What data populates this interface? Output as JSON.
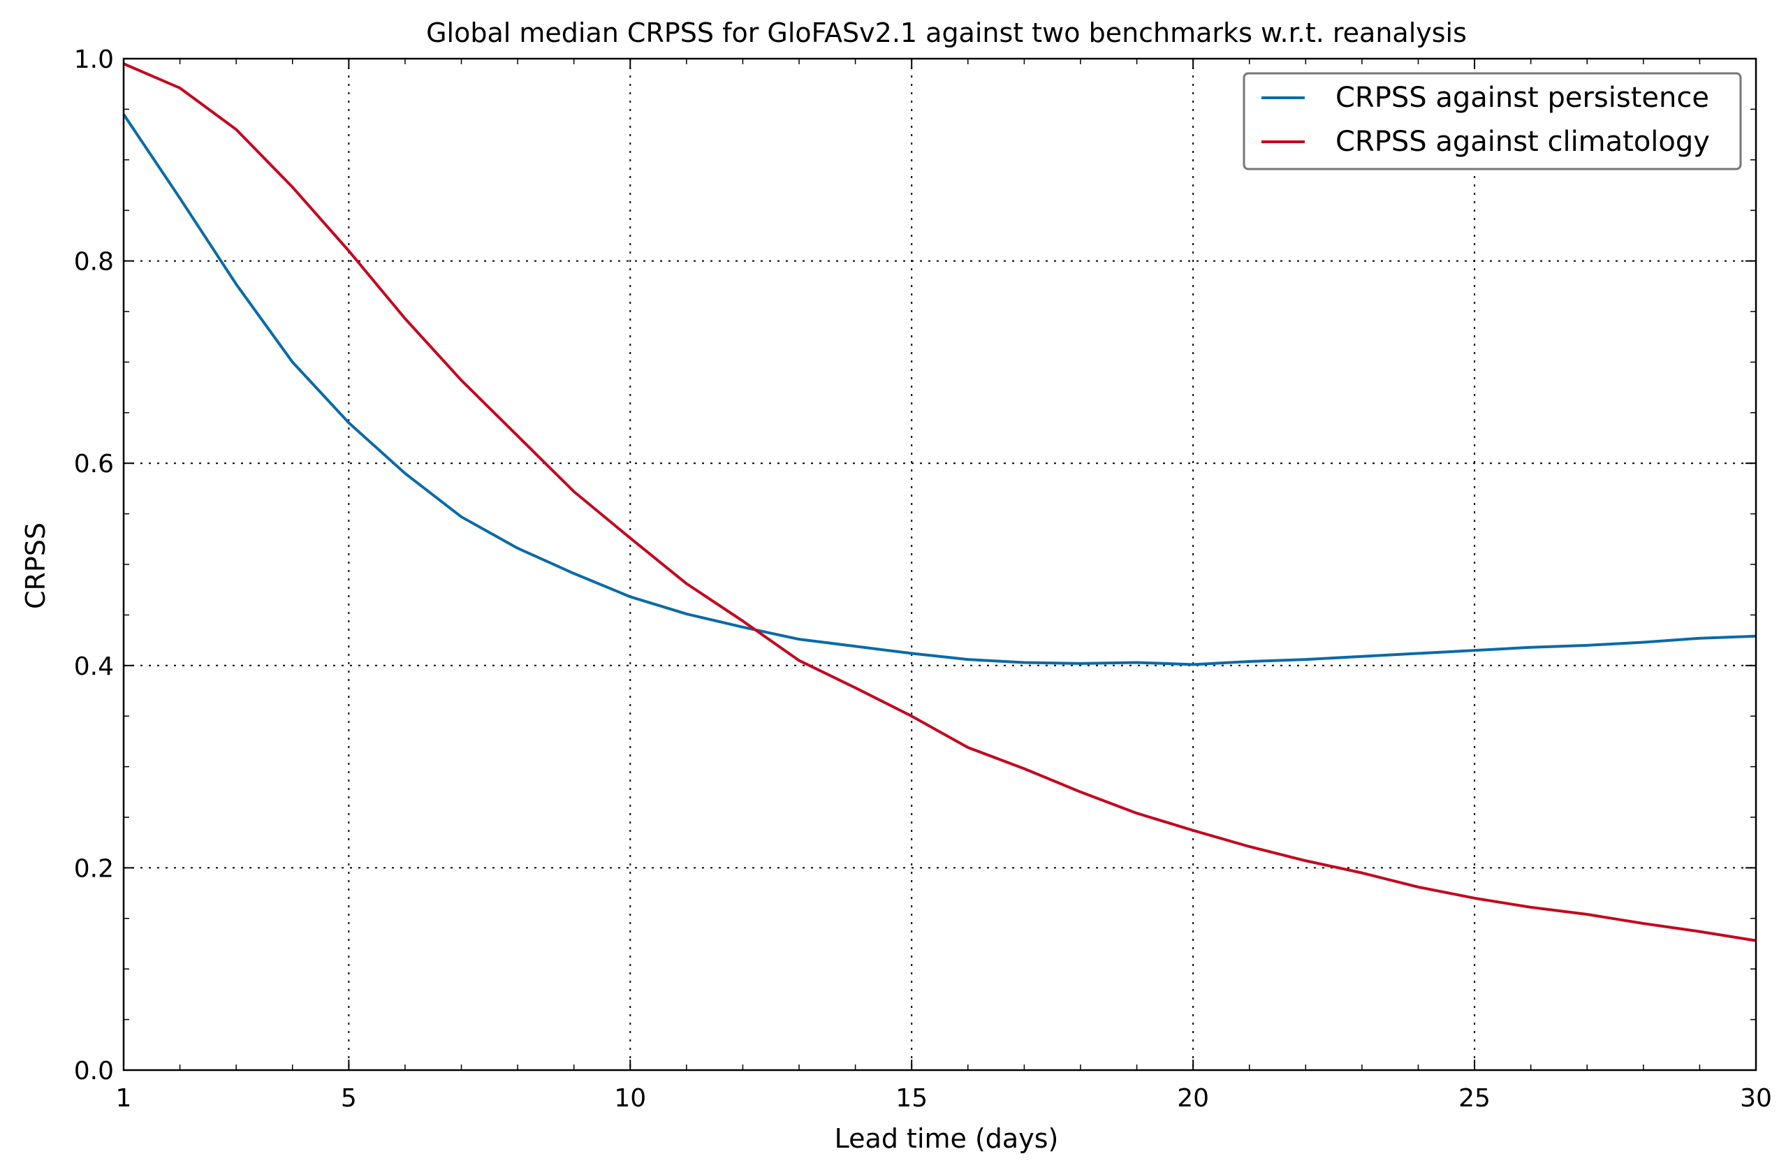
{
  "chart_data": {
    "type": "line",
    "title": "Global median CRPSS for GloFASv2.1 against two benchmarks w.r.t. reanalysis",
    "xlabel": "Lead time (days)",
    "ylabel": "CRPSS",
    "xlim": [
      1,
      30
    ],
    "ylim": [
      0.0,
      1.0
    ],
    "x_ticks": [
      1,
      5,
      10,
      15,
      20,
      25,
      30
    ],
    "x_tick_labels": [
      "1",
      "5",
      "10",
      "15",
      "20",
      "25",
      "30"
    ],
    "y_ticks": [
      0.0,
      0.2,
      0.4,
      0.6,
      0.8,
      1.0
    ],
    "y_tick_labels": [
      "0.0",
      "0.2",
      "0.4",
      "0.6",
      "0.8",
      "1.0"
    ],
    "grid": true,
    "legend_position": "top-right",
    "x": [
      1,
      2,
      3,
      4,
      5,
      6,
      7,
      8,
      9,
      10,
      11,
      12,
      13,
      14,
      15,
      16,
      17,
      18,
      19,
      20,
      21,
      22,
      23,
      24,
      25,
      26,
      27,
      28,
      29,
      30
    ],
    "series": [
      {
        "name": "CRPSS against persistence",
        "color": "#0a6aa8",
        "values": [
          0.945,
          0.862,
          0.777,
          0.7,
          0.64,
          0.59,
          0.547,
          0.516,
          0.491,
          0.468,
          0.451,
          0.438,
          0.426,
          0.419,
          0.412,
          0.406,
          0.403,
          0.402,
          0.403,
          0.401,
          0.404,
          0.406,
          0.409,
          0.412,
          0.415,
          0.418,
          0.42,
          0.423,
          0.427,
          0.429
        ]
      },
      {
        "name": "CRPSS against climatology",
        "color": "#c4081f",
        "values": [
          0.995,
          0.971,
          0.93,
          0.873,
          0.81,
          0.743,
          0.682,
          0.627,
          0.572,
          0.526,
          0.481,
          0.444,
          0.405,
          0.378,
          0.35,
          0.319,
          0.298,
          0.275,
          0.254,
          0.237,
          0.221,
          0.207,
          0.195,
          0.181,
          0.17,
          0.161,
          0.154,
          0.145,
          0.137,
          0.128
        ]
      }
    ]
  }
}
